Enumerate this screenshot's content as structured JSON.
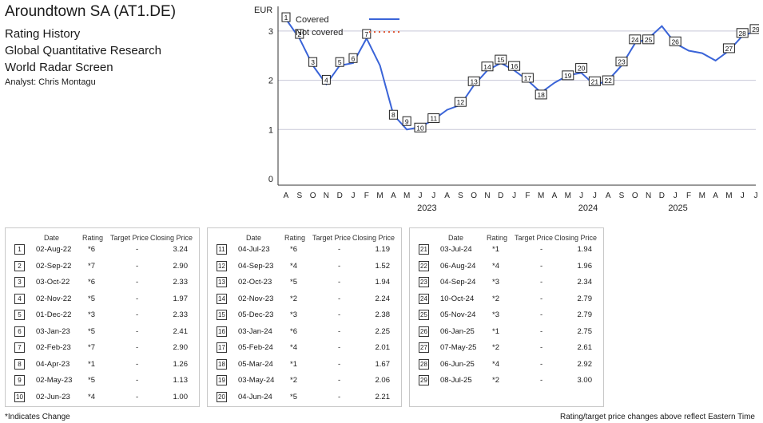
{
  "header": {
    "title": "Aroundtown SA (AT1.DE)",
    "lines": [
      "Rating History",
      "Global Quantitative Research",
      "World Radar Screen"
    ],
    "analyst": "Analyst: Chris Montagu"
  },
  "chart_data": {
    "type": "line",
    "ylabel": "EUR",
    "ylim": [
      0,
      3.5
    ],
    "yticks": [
      0,
      1,
      2,
      3
    ],
    "month_ticks": [
      "A",
      "S",
      "O",
      "N",
      "D",
      "J",
      "F",
      "M",
      "A",
      "M",
      "J",
      "J",
      "A",
      "S",
      "O",
      "N",
      "D",
      "J",
      "F",
      "M",
      "A",
      "M",
      "J",
      "J",
      "A",
      "S",
      "O",
      "N",
      "D",
      "J",
      "F",
      "M",
      "A",
      "M",
      "J",
      "J"
    ],
    "years": [
      "2023",
      "2024",
      "2025"
    ],
    "legend": [
      {
        "name": "Covered",
        "color": "#3a64d8",
        "style": "solid"
      },
      {
        "name": "Not covered",
        "color": "#e06040",
        "style": "dotted"
      }
    ],
    "x": [
      "2022-08",
      "2022-09",
      "2022-10",
      "2022-11",
      "2022-12",
      "2023-01",
      "2023-02",
      "2023-03",
      "2023-04",
      "2023-05",
      "2023-06",
      "2023-07",
      "2023-08",
      "2023-09",
      "2023-10",
      "2023-11",
      "2023-12",
      "2024-01",
      "2024-02",
      "2024-03",
      "2024-04",
      "2024-05",
      "2024-06",
      "2024-07",
      "2024-08",
      "2024-09",
      "2024-10",
      "2024-11",
      "2024-12",
      "2025-01",
      "2025-02",
      "2025-03",
      "2025-04",
      "2025-05",
      "2025-06",
      "2025-07"
    ],
    "values": [
      3.24,
      2.85,
      2.3,
      1.92,
      2.3,
      2.35,
      2.85,
      2.3,
      1.3,
      1.0,
      1.05,
      1.2,
      1.4,
      1.5,
      1.9,
      2.2,
      2.35,
      2.2,
      2.0,
      1.75,
      1.95,
      2.1,
      2.15,
      1.9,
      2.0,
      2.3,
      2.75,
      2.85,
      3.1,
      2.75,
      2.6,
      2.55,
      2.4,
      2.6,
      2.9,
      3.0
    ],
    "markers": [
      {
        "n": "1",
        "x": "2022-08",
        "value": 3.24
      },
      {
        "n": "2",
        "x": "2022-09",
        "value": 2.9
      },
      {
        "n": "3",
        "x": "2022-10",
        "value": 2.33
      },
      {
        "n": "4",
        "x": "2022-11",
        "value": 1.97
      },
      {
        "n": "5",
        "x": "2022-12",
        "value": 2.33
      },
      {
        "n": "6",
        "x": "2023-01",
        "value": 2.41
      },
      {
        "n": "7",
        "x": "2023-02",
        "value": 2.9
      },
      {
        "n": "8",
        "x": "2023-04",
        "value": 1.26
      },
      {
        "n": "9",
        "x": "2023-05",
        "value": 1.13
      },
      {
        "n": "10",
        "x": "2023-06",
        "value": 1.0
      },
      {
        "n": "11",
        "x": "2023-07",
        "value": 1.19
      },
      {
        "n": "12",
        "x": "2023-09",
        "value": 1.52
      },
      {
        "n": "13",
        "x": "2023-10",
        "value": 1.94
      },
      {
        "n": "14",
        "x": "2023-11",
        "value": 2.24
      },
      {
        "n": "15",
        "x": "2023-12",
        "value": 2.38
      },
      {
        "n": "16",
        "x": "2024-01",
        "value": 2.25
      },
      {
        "n": "17",
        "x": "2024-02",
        "value": 2.01
      },
      {
        "n": "18",
        "x": "2024-03",
        "value": 1.67
      },
      {
        "n": "19",
        "x": "2024-05",
        "value": 2.06
      },
      {
        "n": "20",
        "x": "2024-06",
        "value": 2.21
      },
      {
        "n": "21",
        "x": "2024-07",
        "value": 1.94
      },
      {
        "n": "22",
        "x": "2024-08",
        "value": 1.96
      },
      {
        "n": "23",
        "x": "2024-09",
        "value": 2.34
      },
      {
        "n": "24",
        "x": "2024-10",
        "value": 2.79
      },
      {
        "n": "25",
        "x": "2024-11",
        "value": 2.79
      },
      {
        "n": "26",
        "x": "2025-01",
        "value": 2.75
      },
      {
        "n": "27",
        "x": "2025-05",
        "value": 2.61
      },
      {
        "n": "28",
        "x": "2025-06",
        "value": 2.92
      },
      {
        "n": "29",
        "x": "2025-07",
        "value": 3.0
      }
    ]
  },
  "table_headers": [
    "Date",
    "Rating",
    "Target Price",
    "Closing Price"
  ],
  "tables": [
    [
      {
        "n": "1",
        "date": "02-Aug-22",
        "rating": "*6",
        "tp": "-",
        "close": "3.24"
      },
      {
        "n": "2",
        "date": "02-Sep-22",
        "rating": "*7",
        "tp": "-",
        "close": "2.90"
      },
      {
        "n": "3",
        "date": "03-Oct-22",
        "rating": "*6",
        "tp": "-",
        "close": "2.33"
      },
      {
        "n": "4",
        "date": "02-Nov-22",
        "rating": "*5",
        "tp": "-",
        "close": "1.97"
      },
      {
        "n": "5",
        "date": "01-Dec-22",
        "rating": "*3",
        "tp": "-",
        "close": "2.33"
      },
      {
        "n": "6",
        "date": "03-Jan-23",
        "rating": "*5",
        "tp": "-",
        "close": "2.41"
      },
      {
        "n": "7",
        "date": "02-Feb-23",
        "rating": "*7",
        "tp": "-",
        "close": "2.90"
      },
      {
        "n": "8",
        "date": "04-Apr-23",
        "rating": "*1",
        "tp": "-",
        "close": "1.26"
      },
      {
        "n": "9",
        "date": "02-May-23",
        "rating": "*5",
        "tp": "-",
        "close": "1.13"
      },
      {
        "n": "10",
        "date": "02-Jun-23",
        "rating": "*4",
        "tp": "-",
        "close": "1.00"
      }
    ],
    [
      {
        "n": "11",
        "date": "04-Jul-23",
        "rating": "*6",
        "tp": "-",
        "close": "1.19"
      },
      {
        "n": "12",
        "date": "04-Sep-23",
        "rating": "*4",
        "tp": "-",
        "close": "1.52"
      },
      {
        "n": "13",
        "date": "02-Oct-23",
        "rating": "*5",
        "tp": "-",
        "close": "1.94"
      },
      {
        "n": "14",
        "date": "02-Nov-23",
        "rating": "*2",
        "tp": "-",
        "close": "2.24"
      },
      {
        "n": "15",
        "date": "05-Dec-23",
        "rating": "*3",
        "tp": "-",
        "close": "2.38"
      },
      {
        "n": "16",
        "date": "03-Jan-24",
        "rating": "*6",
        "tp": "-",
        "close": "2.25"
      },
      {
        "n": "17",
        "date": "05-Feb-24",
        "rating": "*4",
        "tp": "-",
        "close": "2.01"
      },
      {
        "n": "18",
        "date": "05-Mar-24",
        "rating": "*1",
        "tp": "-",
        "close": "1.67"
      },
      {
        "n": "19",
        "date": "03-May-24",
        "rating": "*2",
        "tp": "-",
        "close": "2.06"
      },
      {
        "n": "20",
        "date": "04-Jun-24",
        "rating": "*5",
        "tp": "-",
        "close": "2.21"
      }
    ],
    [
      {
        "n": "21",
        "date": "03-Jul-24",
        "rating": "*1",
        "tp": "-",
        "close": "1.94"
      },
      {
        "n": "22",
        "date": "06-Aug-24",
        "rating": "*4",
        "tp": "-",
        "close": "1.96"
      },
      {
        "n": "23",
        "date": "04-Sep-24",
        "rating": "*3",
        "tp": "-",
        "close": "2.34"
      },
      {
        "n": "24",
        "date": "10-Oct-24",
        "rating": "*2",
        "tp": "-",
        "close": "2.79"
      },
      {
        "n": "25",
        "date": "05-Nov-24",
        "rating": "*3",
        "tp": "-",
        "close": "2.79"
      },
      {
        "n": "26",
        "date": "06-Jan-25",
        "rating": "*1",
        "tp": "-",
        "close": "2.75"
      },
      {
        "n": "27",
        "date": "07-May-25",
        "rating": "*2",
        "tp": "-",
        "close": "2.61"
      },
      {
        "n": "28",
        "date": "06-Jun-25",
        "rating": "*4",
        "tp": "-",
        "close": "2.92"
      },
      {
        "n": "29",
        "date": "08-Jul-25",
        "rating": "*2",
        "tp": "-",
        "close": "3.00"
      }
    ]
  ],
  "footer": {
    "left": "*Indicates Change",
    "right": "Rating/target price changes above reflect Eastern Time"
  }
}
